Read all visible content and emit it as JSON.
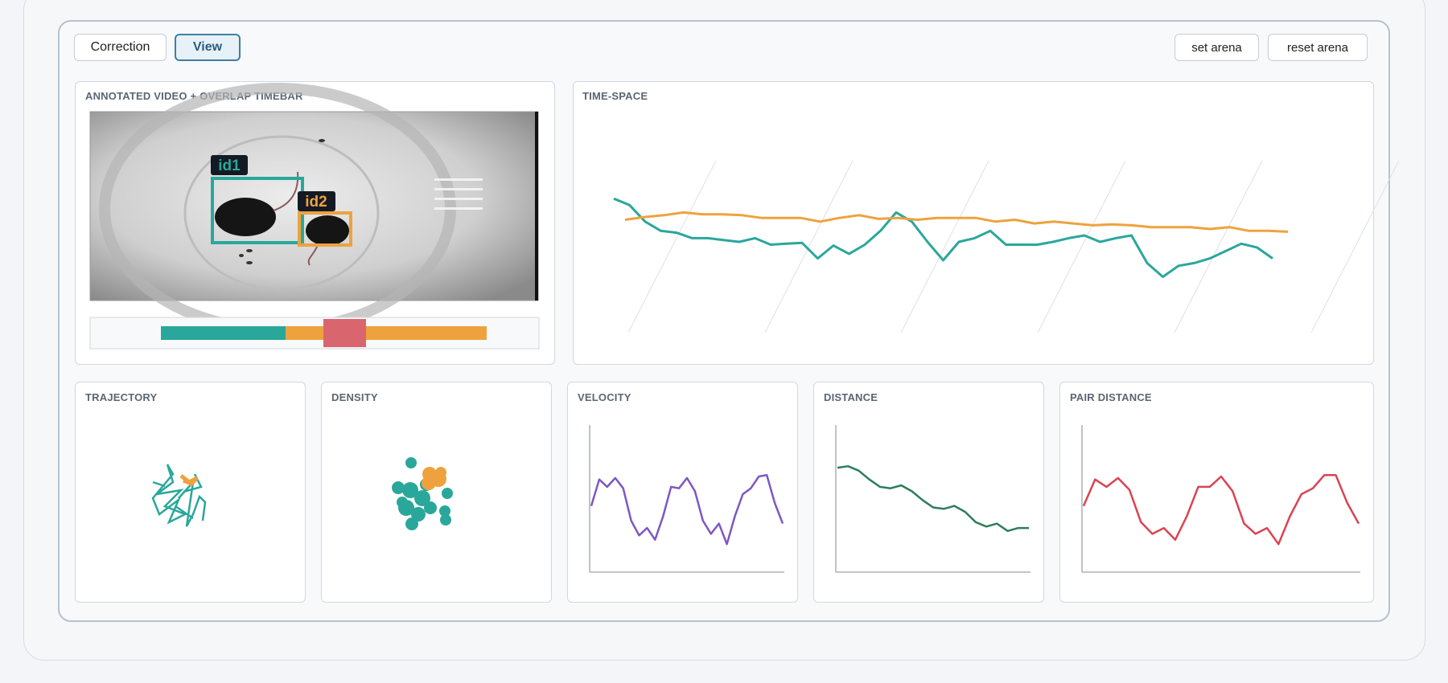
{
  "toolbar": {
    "modes": [
      "Correction",
      "View"
    ],
    "actions": [
      "set arena",
      "reset arena"
    ]
  },
  "panels": {
    "video": {
      "title": "ANNOTATED VIDEO + OVERLAP TIMEBAR",
      "labels": [
        "id1",
        "id2"
      ]
    },
    "trajectory": "TRAJECTORY",
    "density": "DENSITY"
  },
  "chart_data": [
    {
      "type": "line",
      "title": "TIME-SPACE",
      "ylim": [
        0,
        110
      ],
      "series": [
        {
          "color": "#2aa79b",
          "values": [
            95,
            88,
            70,
            60,
            58,
            52,
            52,
            50,
            48,
            52,
            45,
            46,
            47,
            30,
            44,
            35,
            45,
            60,
            80,
            70,
            48,
            28,
            48,
            52,
            60,
            45,
            45,
            45,
            48,
            52,
            55,
            48,
            52,
            55,
            25,
            10,
            22,
            25,
            30,
            38,
            46,
            42,
            30
          ]
        },
        {
          "color": "#eea23e",
          "values": [
            72,
            75,
            77,
            80,
            78,
            78,
            77,
            74,
            74,
            74,
            70,
            74,
            77,
            73,
            74,
            72,
            74,
            74,
            74,
            70,
            72,
            68,
            70,
            68,
            66,
            67,
            66,
            64,
            64,
            64,
            62,
            64,
            60,
            60,
            59
          ]
        }
      ]
    },
    {
      "type": "line",
      "title": "VELOCITY",
      "ylim": [
        0,
        1
      ],
      "color": "#7e57c2",
      "values": [
        0.45,
        0.63,
        0.58,
        0.64,
        0.57,
        0.35,
        0.25,
        0.3,
        0.22,
        0.38,
        0.58,
        0.57,
        0.64,
        0.55,
        0.35,
        0.26,
        0.33,
        0.19,
        0.38,
        0.53,
        0.57,
        0.65,
        0.66,
        0.47,
        0.33
      ]
    },
    {
      "type": "line",
      "title": "DISTANCE",
      "ylim": [
        0,
        1
      ],
      "color": "#2e7d5b",
      "values": [
        0.71,
        0.72,
        0.69,
        0.63,
        0.58,
        0.57,
        0.59,
        0.55,
        0.49,
        0.44,
        0.43,
        0.45,
        0.41,
        0.34,
        0.31,
        0.33,
        0.28,
        0.3,
        0.3
      ]
    },
    {
      "type": "line",
      "title": "PAIR DISTANCE",
      "ylim": [
        0,
        1
      ],
      "color": "#d94452",
      "values": [
        0.45,
        0.63,
        0.58,
        0.64,
        0.56,
        0.34,
        0.26,
        0.3,
        0.22,
        0.38,
        0.58,
        0.58,
        0.65,
        0.55,
        0.33,
        0.26,
        0.3,
        0.19,
        0.38,
        0.53,
        0.57,
        0.66,
        0.66,
        0.47,
        0.33
      ]
    }
  ]
}
